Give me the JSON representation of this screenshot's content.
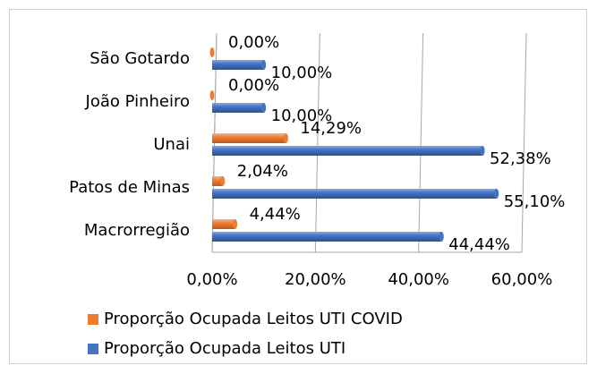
{
  "chart_data": {
    "type": "bar",
    "orientation": "horizontal",
    "categories": [
      "Macrorregião",
      "Patos de Minas",
      "Unai",
      "João Pinheiro",
      "São Gotardo"
    ],
    "series": [
      {
        "name": "Proporção Ocupada Leitos UTI COVID",
        "color": "#ed7d31",
        "values": [
          4.44,
          2.04,
          14.29,
          0,
          0
        ],
        "value_labels": [
          "4,44%",
          "2,04%",
          "14,29%",
          "0,00%",
          "0,00%"
        ]
      },
      {
        "name": "Proporção Ocupada Leitos UTI",
        "color": "#4472c4",
        "values": [
          44.44,
          55.1,
          52.38,
          10,
          10
        ],
        "value_labels": [
          "44,44%",
          "55,10%",
          "52,38%",
          "10,00%",
          "10,00%"
        ]
      }
    ],
    "xlim": [
      0,
      60
    ],
    "xticks": [
      {
        "value": 0,
        "label": "0,00%"
      },
      {
        "value": 20,
        "label": "20,00%"
      },
      {
        "value": 40,
        "label": "40,00%"
      },
      {
        "value": 60,
        "label": "60,00%"
      }
    ],
    "grid": true,
    "legend": "bottom"
  }
}
